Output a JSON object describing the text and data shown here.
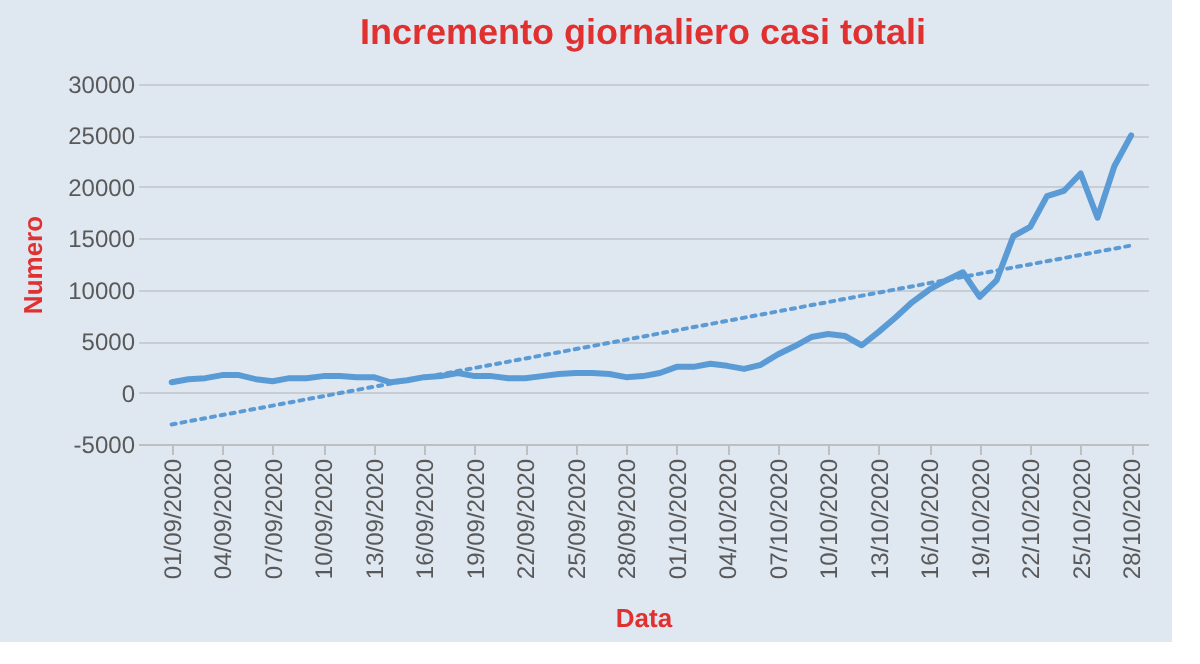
{
  "chart_data": {
    "type": "line",
    "title": "Incremento giornaliero casi totali",
    "xlabel": "Data",
    "ylabel": "Numero",
    "x": [
      "2020-09-01",
      "2020-09-02",
      "2020-09-03",
      "2020-09-04",
      "2020-09-05",
      "2020-09-06",
      "2020-09-07",
      "2020-09-08",
      "2020-09-09",
      "2020-09-10",
      "2020-09-11",
      "2020-09-12",
      "2020-09-13",
      "2020-09-14",
      "2020-09-15",
      "2020-09-16",
      "2020-09-17",
      "2020-09-18",
      "2020-09-19",
      "2020-09-20",
      "2020-09-21",
      "2020-09-22",
      "2020-09-23",
      "2020-09-24",
      "2020-09-25",
      "2020-09-26",
      "2020-09-27",
      "2020-09-28",
      "2020-09-29",
      "2020-09-30",
      "2020-10-01",
      "2020-10-02",
      "2020-10-03",
      "2020-10-04",
      "2020-10-05",
      "2020-10-06",
      "2020-10-07",
      "2020-10-08",
      "2020-10-09",
      "2020-10-10",
      "2020-10-11",
      "2020-10-12",
      "2020-10-13",
      "2020-10-14",
      "2020-10-15",
      "2020-10-16",
      "2020-10-17",
      "2020-10-18",
      "2020-10-19",
      "2020-10-20",
      "2020-10-21",
      "2020-10-22",
      "2020-10-23",
      "2020-10-24",
      "2020-10-25",
      "2020-10-26",
      "2020-10-27",
      "2020-10-28"
    ],
    "series": [
      {
        "color": "#5b9bd5",
        "line_style": "solid",
        "values": [
          1000,
          1300,
          1400,
          1700,
          1700,
          1300,
          1100,
          1400,
          1400,
          1600,
          1600,
          1500,
          1500,
          1000,
          1200,
          1500,
          1600,
          1900,
          1600,
          1600,
          1400,
          1400,
          1600,
          1800,
          1900,
          1900,
          1800,
          1500,
          1600,
          1900,
          2500,
          2500,
          2800,
          2600,
          2300,
          2700,
          3700,
          4500,
          5400,
          5700,
          5500,
          4600,
          5900,
          7300,
          8800,
          10000,
          10900,
          11700,
          9300,
          10900,
          15200,
          16100,
          19100,
          19600,
          21300,
          17000,
          22000,
          25000
        ]
      },
      {
        "type": "line",
        "color": "#5b9bd5",
        "line_style": "dotted",
        "x": [
          "2020-09-01",
          "2020-10-28"
        ],
        "values": [
          -3100,
          14300
        ]
      }
    ],
    "xlim": [
      "2020-08-30",
      "2020-10-29"
    ],
    "xticks": [
      {
        "value": "2020-09-01",
        "label": "01/09/2020"
      },
      {
        "value": "2020-09-04",
        "label": "04/09/2020"
      },
      {
        "value": "2020-09-07",
        "label": "07/09/2020"
      },
      {
        "value": "2020-09-10",
        "label": "10/09/2020"
      },
      {
        "value": "2020-09-13",
        "label": "13/09/2020"
      },
      {
        "value": "2020-09-16",
        "label": "16/09/2020"
      },
      {
        "value": "2020-09-19",
        "label": "19/09/2020"
      },
      {
        "value": "2020-09-22",
        "label": "22/09/2020"
      },
      {
        "value": "2020-09-25",
        "label": "25/09/2020"
      },
      {
        "value": "2020-09-28",
        "label": "28/09/2020"
      },
      {
        "value": "2020-10-01",
        "label": "01/10/2020"
      },
      {
        "value": "2020-10-04",
        "label": "04/10/2020"
      },
      {
        "value": "2020-10-07",
        "label": "07/10/2020"
      },
      {
        "value": "2020-10-10",
        "label": "10/10/2020"
      },
      {
        "value": "2020-10-13",
        "label": "13/10/2020"
      },
      {
        "value": "2020-10-16",
        "label": "16/10/2020"
      },
      {
        "value": "2020-10-19",
        "label": "19/10/2020"
      },
      {
        "value": "2020-10-22",
        "label": "22/10/2020"
      },
      {
        "value": "2020-10-25",
        "label": "25/10/2020"
      },
      {
        "value": "2020-10-28",
        "label": "28/10/2020"
      }
    ],
    "ylim": [
      -5000,
      30000
    ],
    "yticks": [
      -5000,
      0,
      5000,
      10000,
      15000,
      20000,
      25000,
      30000
    ],
    "grid": "y"
  }
}
